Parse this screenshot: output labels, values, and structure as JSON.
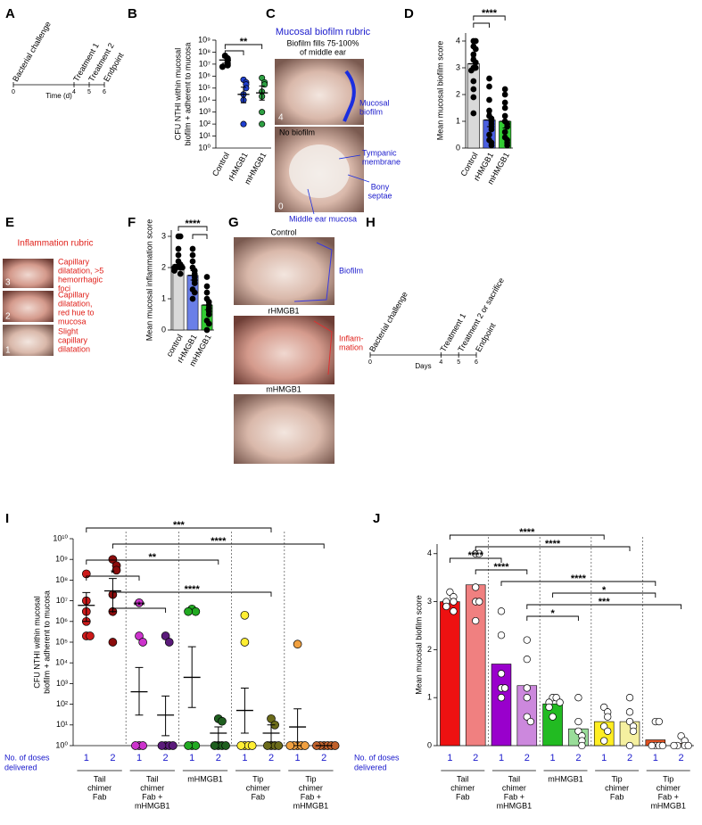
{
  "panels": [
    "A",
    "B",
    "C",
    "D",
    "E",
    "F",
    "G",
    "H",
    "I",
    "J"
  ],
  "biofilm_rubric": {
    "title": "Mucosal biofilm rubric",
    "examples": [
      {
        "caption": [
          "Biofilm fills 75-100%",
          "of middle ear"
        ],
        "score": "4",
        "labels": [
          [
            "Mucosal",
            "biofilm"
          ]
        ]
      },
      {
        "caption": [
          "No biofilm"
        ],
        "score": "0",
        "labels": [
          [
            "Tympanic",
            "membrane"
          ],
          [
            "Bony",
            "septae"
          ],
          [
            "Middle ear mucosa"
          ]
        ]
      }
    ]
  },
  "inflammation_rubric": {
    "title": "Inflammation rubric",
    "examples": [
      {
        "score": "3",
        "text": [
          "Capillary",
          "dilatation, >5",
          "hemorrhagic",
          "foci"
        ]
      },
      {
        "score": "2",
        "text": [
          "Capillary",
          "dilatation,",
          "red hue to",
          "mucosa"
        ]
      },
      {
        "score": "1",
        "text": [
          "Slight",
          "capillary",
          "dilatation"
        ]
      }
    ]
  },
  "photos": [
    {
      "label": "Control",
      "annotation": [
        "Biofilm"
      ]
    },
    {
      "label": "rHMGB1",
      "annotation": [
        "Inflam-",
        "mation"
      ]
    },
    {
      "label": "mHMGB1"
    }
  ],
  "chart_data": [
    {
      "type": "timeline",
      "xlabel": "Time (d)",
      "xlim": [
        0,
        6
      ],
      "xticks": [
        0,
        4,
        5,
        6
      ],
      "events": [
        {
          "label": "Bacterial challenge",
          "x": 0
        },
        {
          "label": "Treatment 1",
          "x": 4
        },
        {
          "label": "Treatment 2",
          "x": 5
        },
        {
          "label": "Endpoint",
          "x": 6
        }
      ]
    },
    {
      "type": "dot",
      "log": true,
      "ylabel": [
        "CFU NTHI within mucosal",
        "biofilm + adherent to mucosa"
      ],
      "ylim": [
        1,
        1000000000
      ],
      "yticks": [
        {
          "value": 1,
          "label": "10⁰"
        },
        {
          "value": 10,
          "label": "10¹"
        },
        {
          "value": 100,
          "label": "10²"
        },
        {
          "value": 1000,
          "label": "10³"
        },
        {
          "value": 10000,
          "label": "10⁴"
        },
        {
          "value": 100000,
          "label": "10⁵"
        },
        {
          "value": 1000000,
          "label": "10⁶"
        },
        {
          "value": 10000000,
          "label": "10⁷"
        },
        {
          "value": 100000000,
          "label": "10⁸"
        },
        {
          "value": 1000000000,
          "label": "10⁹"
        }
      ],
      "groups": [
        {
          "name": "Control",
          "color": "#000000",
          "points": [
            50000000,
            30000000,
            20000000,
            12000000,
            8000000,
            6000000
          ],
          "mean": 22000000,
          "error": [
            12000000,
            35000000
          ]
        },
        {
          "name": "rHMGB1",
          "color": "#1f3fcf",
          "points": [
            500000,
            300000,
            200000,
            100000,
            30000,
            10000,
            100
          ],
          "mean": 30000,
          "error": [
            6000,
            120000
          ]
        },
        {
          "name": "mHMGB1",
          "color": "#2ea043",
          "points": [
            700000,
            300000,
            200000,
            50000,
            20000,
            1000,
            100
          ],
          "mean": 40000,
          "error": [
            10000,
            150000
          ]
        }
      ],
      "brackets": [
        {
          "from": 0,
          "to": 2,
          "label": "**"
        },
        {
          "from": 0,
          "to": 1
        }
      ]
    },
    {
      "type": "bar",
      "ylabel": [
        "Mean mucosal biofilm score"
      ],
      "ylim": [
        0,
        4.3
      ],
      "yticks": [
        0,
        1,
        2,
        3,
        4
      ],
      "point_color": "#000000",
      "groups": [
        {
          "name": "Control",
          "color": "#d9d9d9",
          "bar": 3.15,
          "points": [
            4,
            4,
            3.8,
            3.7,
            3.5,
            3.3,
            3.2,
            3,
            3,
            2.9,
            2.5,
            2.2,
            1.9,
            1.3
          ],
          "mean": 3.15,
          "error": [
            2.9,
            3.4
          ]
        },
        {
          "name": "rHMGB1",
          "color": "#4a5fe0",
          "bar": 1.05,
          "points": [
            2.6,
            2.3,
            1.8,
            1.4,
            1.2,
            1.1,
            1,
            0.9,
            0.8,
            0.7,
            0.5,
            0.3,
            0.2,
            0.1
          ],
          "mean": 1.05,
          "error": [
            0.8,
            1.3
          ]
        },
        {
          "name": "mHMGB1",
          "color": "#33cc33",
          "bar": 1,
          "points": [
            2.2,
            2,
            1.7,
            1.5,
            1.2,
            1,
            0.9,
            0.8,
            0.6,
            0.4,
            0.3,
            0.2,
            0.1
          ],
          "mean": 1,
          "error": [
            0.75,
            1.25
          ]
        }
      ],
      "brackets": [
        {
          "from": 0,
          "to": 2,
          "label": "****"
        },
        {
          "from": 0,
          "to": 1
        }
      ]
    },
    {
      "type": "bar",
      "ylabel": [
        "Mean mucosal inflammation score"
      ],
      "ylim": [
        0,
        3.2
      ],
      "yticks": [
        0,
        1,
        2,
        3
      ],
      "point_color": "#000000",
      "groups": [
        {
          "name": "control",
          "color": "#d9d9d9",
          "bar": 2.1,
          "points": [
            3,
            3,
            2.6,
            2.4,
            2.2,
            2.1,
            2,
            2,
            2,
            2,
            1.9,
            1.8
          ],
          "mean": 2.1,
          "error": [
            1.95,
            2.25
          ]
        },
        {
          "name": "rHMGB1",
          "color": "#6a7fe8",
          "bar": 1.75,
          "points": [
            2.6,
            2.4,
            2.2,
            2,
            1.9,
            1.8,
            1.7,
            1.6,
            1.5,
            1.3,
            1.2,
            1
          ],
          "mean": 1.75,
          "error": [
            1.6,
            1.9
          ]
        },
        {
          "name": "mHMGB1",
          "color": "#33cc33",
          "bar": 0.8,
          "points": [
            1.7,
            1.4,
            1.2,
            1,
            0.9,
            0.8,
            0.7,
            0.6,
            0.5,
            0.3,
            0.2,
            0
          ],
          "mean": 0.8,
          "error": [
            0.65,
            0.95
          ]
        }
      ],
      "brackets": [
        {
          "from": 0,
          "to": 2,
          "label": "****"
        },
        {
          "from": 1,
          "to": 2
        }
      ]
    },
    {
      "type": "timeline",
      "xlabel": "Days",
      "xlim": [
        0,
        6
      ],
      "xticks": [
        0,
        4,
        5,
        6
      ],
      "events": [
        {
          "label": "Bacterial challenge",
          "x": 0
        },
        {
          "label": "Treatment 1",
          "x": 4
        },
        {
          "label": "Treatment 2 or sacrifice",
          "x": 5
        },
        {
          "label": "Endpoint",
          "x": 6
        }
      ]
    },
    {
      "type": "dot",
      "log": true,
      "ylabel": [
        "CFU NTHI within mucosal",
        "biofilm + adherent to mucosa"
      ],
      "ylim": [
        1,
        10000000000
      ],
      "yticks": [
        {
          "value": 1,
          "label": "10⁰"
        },
        {
          "value": 10,
          "label": "10¹"
        },
        {
          "value": 100,
          "label": "10²"
        },
        {
          "value": 1000,
          "label": "10³"
        },
        {
          "value": 10000,
          "label": "10⁴"
        },
        {
          "value": 100000,
          "label": "10⁵"
        },
        {
          "value": 1000000,
          "label": "10⁶"
        },
        {
          "value": 10000000,
          "label": "10⁷"
        },
        {
          "value": 100000000,
          "label": "10⁸"
        },
        {
          "value": 1000000000,
          "label": "10⁹"
        },
        {
          "value": 10000000000,
          "label": "10¹⁰"
        }
      ],
      "dose_label": [
        "No. of doses",
        "delivered"
      ],
      "sets": [
        [
          "Tail",
          "chimer",
          "Fab"
        ],
        [
          "Tail",
          "chimer",
          "Fab +",
          "mHMGB1"
        ],
        [
          "mHMGB1"
        ],
        [
          "Tip",
          "chimer",
          "Fab"
        ],
        [
          "Tip",
          "chimer",
          "Fab +",
          "mHMGB1"
        ]
      ],
      "groups": [
        {
          "dose": "1",
          "color": "#cc1a1a",
          "points": [
            200000000,
            10000000,
            3000000,
            1000000,
            200000,
            200000
          ],
          "mean": 6000000,
          "error": [
            1000000,
            25000000
          ]
        },
        {
          "dose": "2",
          "color": "#8b0c0c",
          "points": [
            1000000000,
            500000000,
            300000000,
            20000000,
            3000000,
            100000
          ],
          "mean": 30000000,
          "error": [
            3000000,
            120000000
          ]
        },
        {
          "dose": "1",
          "color": "#cc33cc",
          "points": [
            8000000,
            200000,
            100000,
            1,
            1,
            1
          ],
          "mean": 400,
          "error": [
            30,
            6000
          ]
        },
        {
          "dose": "2",
          "color": "#5a1a7a",
          "points": [
            200000,
            100000,
            1,
            1,
            1,
            1
          ],
          "mean": 30,
          "error": [
            3,
            250
          ]
        },
        {
          "dose": "1",
          "color": "#22aa22",
          "points": [
            4000000,
            3000000,
            3000000,
            1,
            1,
            1
          ],
          "mean": 2000,
          "error": [
            70,
            60000
          ]
        },
        {
          "dose": "2",
          "color": "#1f5f1f",
          "points": [
            20,
            15,
            1,
            1,
            1,
            1
          ],
          "mean": 4,
          "error": [
            1.5,
            8
          ]
        },
        {
          "dose": "1",
          "color": "#ffee33",
          "points": [
            2000000,
            100000,
            1,
            1,
            1,
            1
          ],
          "mean": 50,
          "error": [
            4,
            600
          ]
        },
        {
          "dose": "2",
          "color": "#6b6b1a",
          "points": [
            20,
            10,
            1,
            1,
            1,
            1
          ],
          "mean": 4,
          "error": [
            1.5,
            10
          ]
        },
        {
          "dose": "1",
          "color": "#f0a040",
          "points": [
            80000,
            1,
            1,
            1,
            1,
            1
          ],
          "mean": 8,
          "error": [
            1,
            60
          ]
        },
        {
          "dose": "2",
          "color": "#c0602a",
          "points": [
            1,
            1,
            1,
            1,
            1,
            1
          ],
          "mean": 1
        }
      ],
      "brackets": [
        {
          "from": 0,
          "to": 7,
          "label": "***"
        },
        {
          "from": 1,
          "to": 9,
          "label": "****"
        },
        {
          "from": 0,
          "to": 5,
          "label": "**"
        },
        {
          "from": 0,
          "to": 2,
          "label": "*"
        },
        {
          "from": 1,
          "to": 7,
          "label": "****"
        },
        {
          "from": 1,
          "to": 3,
          "label": "***"
        }
      ]
    },
    {
      "type": "bar",
      "ylabel": [
        "Mean mucosal biofilm score"
      ],
      "ylim": [
        0,
        4.2
      ],
      "yticks": [
        0,
        1,
        2,
        3,
        4
      ],
      "point_color": "#ffffff",
      "dose_label": [
        "No. of doses",
        "delivered"
      ],
      "sets": [
        [
          "Tail",
          "chimer",
          "Fab"
        ],
        [
          "Tail",
          "chimer",
          "Fab +",
          "mHMGB1"
        ],
        [
          "mHMGB1"
        ],
        [
          "Tip",
          "chimer",
          "Fab"
        ],
        [
          "Tip",
          "chimer",
          "Fab +",
          "mHMGB1"
        ]
      ],
      "groups": [
        {
          "dose": "1",
          "color": "#ee1111",
          "bar": 3,
          "points": [
            3.2,
            3.1,
            3,
            3,
            2.9,
            2.8
          ]
        },
        {
          "dose": "2",
          "color": "#f08080",
          "bar": 3.35,
          "points": [
            4,
            4,
            3.3,
            3,
            3,
            2.6
          ]
        },
        {
          "dose": "1",
          "color": "#9900cc",
          "bar": 1.7,
          "points": [
            2.8,
            2.3,
            1.5,
            1.2,
            1.2,
            1
          ]
        },
        {
          "dose": "2",
          "color": "#cc88dd",
          "bar": 1.25,
          "points": [
            2.2,
            1.8,
            1.2,
            1,
            0.6,
            0.5
          ]
        },
        {
          "dose": "1",
          "color": "#22bb22",
          "bar": 0.87,
          "points": [
            1,
            1,
            0.9,
            0.9,
            0.8,
            0.6
          ]
        },
        {
          "dose": "2",
          "color": "#99dd99",
          "bar": 0.35,
          "points": [
            1,
            0.5,
            0.3,
            0.2,
            0.1,
            0
          ]
        },
        {
          "dose": "1",
          "color": "#ffee22",
          "bar": 0.5,
          "points": [
            0.8,
            0.7,
            0.6,
            0.4,
            0.3,
            0.1
          ]
        },
        {
          "dose": "2",
          "color": "#f5f0a0",
          "bar": 0.5,
          "points": [
            1,
            0.7,
            0.5,
            0.4,
            0.3,
            0
          ]
        },
        {
          "dose": "1",
          "color": "#e05020",
          "bar": 0.12,
          "points": [
            0.5,
            0.5,
            0,
            0,
            0,
            0
          ]
        },
        {
          "dose": "2",
          "color": "#f0c0a0",
          "bar": 0.05,
          "points": [
            0.2,
            0.1,
            0,
            0,
            0,
            0
          ]
        }
      ],
      "brackets": [
        {
          "from": 0,
          "to": 6,
          "label": "****"
        },
        {
          "from": 1,
          "to": 7,
          "label": "****"
        },
        {
          "from": 0,
          "to": 2,
          "label": "****"
        },
        {
          "from": 1,
          "to": 3,
          "label": "****"
        },
        {
          "from": 2,
          "to": 8,
          "label": "****"
        },
        {
          "from": 4,
          "to": 8,
          "label": "*"
        },
        {
          "from": 3,
          "to": 9,
          "label": "***"
        },
        {
          "from": 3,
          "to": 5,
          "label": "*"
        }
      ]
    }
  ]
}
